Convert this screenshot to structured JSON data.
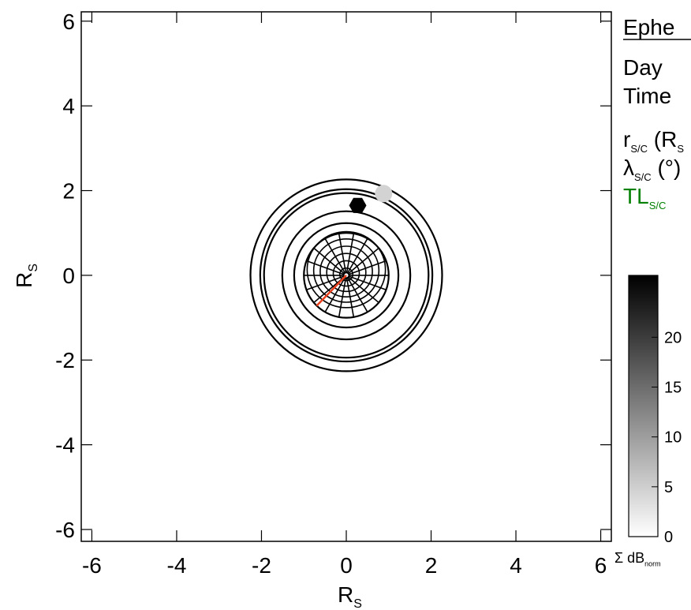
{
  "chart_data": {
    "type": "orbit",
    "xlim": [
      -6.25,
      6.25
    ],
    "ylim": [
      -6.28,
      6.22
    ],
    "xticks": [
      -6,
      -4,
      -2,
      0,
      2,
      4,
      6
    ],
    "yticks": [
      -6,
      -4,
      -2,
      0,
      2,
      4,
      6
    ],
    "xlabel": {
      "main": "R",
      "sub": "S"
    },
    "ylabel": {
      "main": "R",
      "sub": "S"
    },
    "planet_radius": 1,
    "rings": [
      1.23,
      1.51,
      1.94,
      2.03,
      2.26
    ],
    "markers": [
      {
        "x": 0.27,
        "y": 1.65,
        "shape": "hexagon",
        "color": "#000000"
      },
      {
        "x": 0.88,
        "y": 1.93,
        "shape": "circle",
        "color": "#d3d3d3"
      }
    ],
    "field_line": {
      "x": [
        0,
        -0.7
      ],
      "y": [
        0,
        -0.72
      ],
      "color": "#e8401c"
    },
    "ephemeris": {
      "title": "Ephe",
      "day": "Day",
      "time": "Time",
      "r": {
        "main": "r",
        "sub": "S/C",
        "after": " (R",
        "after_sub": "S"
      },
      "lambda": {
        "main": "λ",
        "sub": "S/C",
        "after": " (°)"
      },
      "tl": {
        "main": "TL",
        "sub": "S/C",
        "color": "#008000"
      }
    },
    "colorbar": {
      "clim": [
        0,
        26.2
      ],
      "ticks": [
        0,
        5,
        10,
        15,
        20
      ],
      "colors": [
        "#ffffff",
        "#000000"
      ],
      "label": {
        "main": "Σ dB",
        "sub": "norm"
      }
    }
  }
}
